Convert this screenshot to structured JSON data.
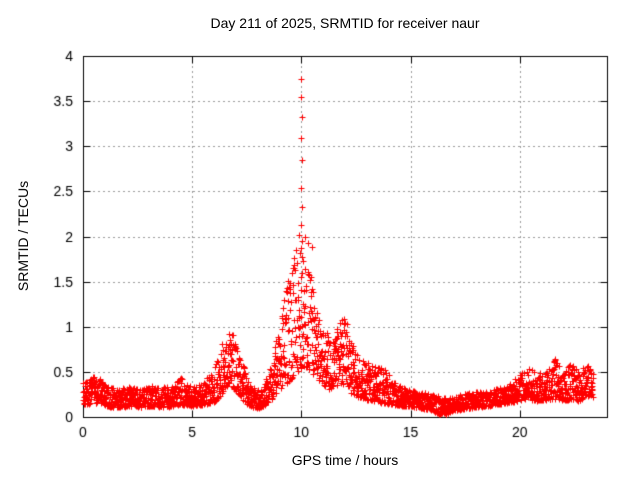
{
  "figure": {
    "title": "Day 211 of 2025, SRMTID for receiver naur",
    "xlabel": "GPS time / hours",
    "ylabel": "SRMTID / TECUs"
  },
  "chart_data": {
    "type": "scatter",
    "title": "Day 211 of 2025, SRMTID for receiver naur",
    "xlabel": "GPS time / hours",
    "ylabel": "SRMTID / TECUs",
    "series_name": "SRMTID",
    "marker": {
      "shape": "plus",
      "size": 6,
      "color": "#ff0000"
    },
    "x_range": [
      0,
      24
    ],
    "y_range": [
      0,
      4
    ],
    "x_ticks": [
      0,
      5,
      10,
      15,
      20
    ],
    "x_tick_labels": [
      "0",
      "5",
      "10",
      "15",
      "20"
    ],
    "y_ticks": [
      0,
      0.5,
      1,
      1.5,
      2,
      2.5,
      3,
      3.5,
      4
    ],
    "y_tick_labels": [
      "0",
      "0.5",
      "1",
      "1.5",
      "2",
      "2.5",
      "3",
      "3.5",
      "4"
    ],
    "grid": true,
    "legend_position": "none",
    "colors": {
      "marker": "#ff0000",
      "axis": "#000000",
      "grid": "#9b9b9b",
      "text": "#000000",
      "background": "#ffffff"
    },
    "sampling": {
      "points_per_hour": 110,
      "t_start": 0,
      "t_end": 23.36,
      "seed": 7
    },
    "envelope_keyframes": [
      [
        0.0,
        0.13,
        0.38
      ],
      [
        0.3,
        0.15,
        0.42
      ],
      [
        0.6,
        0.16,
        0.46
      ],
      [
        0.9,
        0.14,
        0.4
      ],
      [
        1.2,
        0.11,
        0.33
      ],
      [
        1.7,
        0.11,
        0.32
      ],
      [
        2.2,
        0.12,
        0.34
      ],
      [
        2.7,
        0.11,
        0.31
      ],
      [
        3.2,
        0.12,
        0.35
      ],
      [
        3.7,
        0.11,
        0.33
      ],
      [
        4.1,
        0.12,
        0.36
      ],
      [
        4.5,
        0.14,
        0.44
      ],
      [
        4.8,
        0.12,
        0.34
      ],
      [
        5.3,
        0.13,
        0.38
      ],
      [
        5.8,
        0.15,
        0.45
      ],
      [
        6.1,
        0.18,
        0.6
      ],
      [
        6.4,
        0.28,
        0.85
      ],
      [
        6.65,
        0.35,
        0.97
      ],
      [
        6.9,
        0.32,
        0.9
      ],
      [
        7.15,
        0.25,
        0.72
      ],
      [
        7.45,
        0.15,
        0.5
      ],
      [
        7.75,
        0.11,
        0.33
      ],
      [
        8.05,
        0.1,
        0.3
      ],
      [
        8.35,
        0.13,
        0.4
      ],
      [
        8.65,
        0.2,
        0.62
      ],
      [
        8.9,
        0.28,
        0.92
      ],
      [
        9.15,
        0.33,
        1.25
      ],
      [
        9.4,
        0.38,
        1.52
      ],
      [
        9.65,
        0.45,
        1.78
      ],
      [
        9.85,
        0.5,
        1.92
      ],
      [
        10.05,
        0.55,
        1.9
      ],
      [
        10.25,
        0.55,
        1.78
      ],
      [
        10.45,
        0.5,
        1.6
      ],
      [
        10.65,
        0.45,
        1.35
      ],
      [
        10.85,
        0.4,
        1.12
      ],
      [
        11.05,
        0.35,
        1.02
      ],
      [
        11.3,
        0.3,
        0.88
      ],
      [
        11.6,
        0.35,
        0.98
      ],
      [
        11.85,
        0.38,
        1.1
      ],
      [
        12.0,
        0.35,
        1.2
      ],
      [
        12.2,
        0.28,
        0.92
      ],
      [
        12.5,
        0.24,
        0.72
      ],
      [
        12.8,
        0.2,
        0.62
      ],
      [
        13.1,
        0.19,
        0.6
      ],
      [
        13.45,
        0.17,
        0.55
      ],
      [
        13.8,
        0.15,
        0.56
      ],
      [
        14.2,
        0.14,
        0.4
      ],
      [
        14.6,
        0.12,
        0.33
      ],
      [
        15.0,
        0.11,
        0.3
      ],
      [
        15.5,
        0.1,
        0.28
      ],
      [
        16.0,
        0.07,
        0.25
      ],
      [
        16.5,
        0.02,
        0.22
      ],
      [
        17.0,
        0.07,
        0.24
      ],
      [
        17.5,
        0.09,
        0.26
      ],
      [
        18.0,
        0.11,
        0.28
      ],
      [
        18.5,
        0.12,
        0.3
      ],
      [
        19.0,
        0.14,
        0.32
      ],
      [
        19.5,
        0.16,
        0.38
      ],
      [
        20.0,
        0.18,
        0.46
      ],
      [
        20.4,
        0.2,
        0.56
      ],
      [
        20.8,
        0.18,
        0.48
      ],
      [
        21.2,
        0.19,
        0.5
      ],
      [
        21.6,
        0.2,
        0.66
      ],
      [
        22.0,
        0.18,
        0.5
      ],
      [
        22.35,
        0.2,
        0.6
      ],
      [
        22.7,
        0.18,
        0.5
      ],
      [
        23.0,
        0.22,
        0.62
      ],
      [
        23.36,
        0.2,
        0.5
      ]
    ],
    "outlier_points": [
      [
        9.9,
        2.02
      ],
      [
        10.0,
        3.75
      ],
      [
        10.0,
        3.55
      ],
      [
        10.02,
        3.32
      ],
      [
        10.0,
        3.09
      ],
      [
        10.02,
        2.85
      ],
      [
        10.0,
        2.54
      ],
      [
        10.02,
        2.33
      ],
      [
        10.0,
        2.13
      ],
      [
        10.0,
        1.87
      ],
      [
        10.05,
        1.95
      ],
      [
        10.15,
        1.99
      ],
      [
        10.3,
        1.93
      ],
      [
        10.5,
        1.88
      ]
    ]
  }
}
